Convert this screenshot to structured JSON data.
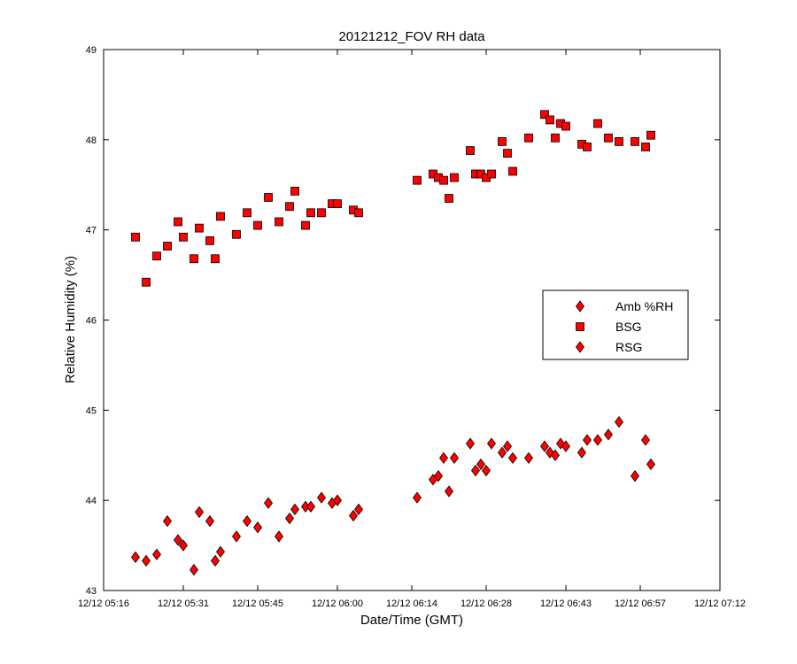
{
  "chart_data": {
    "type": "scatter",
    "title": "20121212_FOV RH data",
    "xlabel": "Date/Time (GMT)",
    "ylabel": "Relative Humidity (%)",
    "x_unit": "GMT time of day, 12/12",
    "xlim": [
      "05:16",
      "07:12"
    ],
    "ylim": [
      43,
      49
    ],
    "x_ticks": [
      "05:16",
      "05:31",
      "05:45",
      "06:00",
      "06:14",
      "06:28",
      "06:43",
      "06:57",
      "07:12"
    ],
    "x_tick_labels": [
      "12/12 05:16",
      "12/12 05:31",
      "12/12 05:45",
      "12/12 06:00",
      "12/12 06:14",
      "12/12 06:28",
      "12/12 06:43",
      "12/12 06:57",
      "12/12 07:12"
    ],
    "y_ticks": [
      43,
      44,
      45,
      46,
      47,
      48,
      49
    ],
    "y_tick_labels": [
      "43",
      "44",
      "45",
      "46",
      "47",
      "48",
      "49"
    ],
    "grid": false,
    "legend_position": "right",
    "series": [
      {
        "name": "Amb %RH",
        "marker": "diamond",
        "color": "#ff0000",
        "points": []
      },
      {
        "name": "BSG",
        "marker": "square",
        "color": "#ff0000",
        "points": [
          [
            "05:22",
            46.92
          ],
          [
            "05:24",
            46.42
          ],
          [
            "05:26",
            46.71
          ],
          [
            "05:28",
            46.82
          ],
          [
            "05:30",
            47.09
          ],
          [
            "05:31",
            46.92
          ],
          [
            "05:33",
            46.68
          ],
          [
            "05:34",
            47.02
          ],
          [
            "05:36",
            46.88
          ],
          [
            "05:37",
            46.68
          ],
          [
            "05:38",
            47.15
          ],
          [
            "05:41",
            46.95
          ],
          [
            "05:43",
            47.19
          ],
          [
            "05:45",
            47.05
          ],
          [
            "05:47",
            47.36
          ],
          [
            "05:49",
            47.09
          ],
          [
            "05:51",
            47.26
          ],
          [
            "05:52",
            47.43
          ],
          [
            "05:54",
            47.05
          ],
          [
            "05:55",
            47.19
          ],
          [
            "05:57",
            47.19
          ],
          [
            "05:59",
            47.29
          ],
          [
            "06:00",
            47.29
          ],
          [
            "06:03",
            47.22
          ],
          [
            "06:04",
            47.19
          ],
          [
            "06:15",
            47.55
          ],
          [
            "06:18",
            47.62
          ],
          [
            "06:19",
            47.58
          ],
          [
            "06:20",
            47.55
          ],
          [
            "06:21",
            47.35
          ],
          [
            "06:22",
            47.58
          ],
          [
            "06:25",
            47.88
          ],
          [
            "06:26",
            47.62
          ],
          [
            "06:27",
            47.62
          ],
          [
            "06:28",
            47.58
          ],
          [
            "06:29",
            47.62
          ],
          [
            "06:31",
            47.98
          ],
          [
            "06:32",
            47.85
          ],
          [
            "06:33",
            47.65
          ],
          [
            "06:36",
            48.02
          ],
          [
            "06:39",
            48.28
          ],
          [
            "06:40",
            48.22
          ],
          [
            "06:41",
            48.02
          ],
          [
            "06:42",
            48.18
          ],
          [
            "06:43",
            48.15
          ],
          [
            "06:46",
            47.95
          ],
          [
            "06:47",
            47.92
          ],
          [
            "06:49",
            48.18
          ],
          [
            "06:51",
            48.02
          ],
          [
            "06:53",
            47.98
          ],
          [
            "06:56",
            47.98
          ],
          [
            "06:58",
            47.92
          ],
          [
            "06:59",
            48.05
          ]
        ]
      },
      {
        "name": "RSG",
        "marker": "diamond",
        "color": "#ff0000",
        "points": [
          [
            "05:22",
            43.37
          ],
          [
            "05:24",
            43.33
          ],
          [
            "05:26",
            43.4
          ],
          [
            "05:28",
            43.77
          ],
          [
            "05:30",
            43.56
          ],
          [
            "05:31",
            43.5
          ],
          [
            "05:33",
            43.23
          ],
          [
            "05:34",
            43.87
          ],
          [
            "05:36",
            43.77
          ],
          [
            "05:37",
            43.33
          ],
          [
            "05:38",
            43.43
          ],
          [
            "05:41",
            43.6
          ],
          [
            "05:43",
            43.77
          ],
          [
            "05:45",
            43.7
          ],
          [
            "05:47",
            43.97
          ],
          [
            "05:49",
            43.6
          ],
          [
            "05:51",
            43.8
          ],
          [
            "05:52",
            43.9
          ],
          [
            "05:54",
            43.93
          ],
          [
            "05:55",
            43.93
          ],
          [
            "05:57",
            44.03
          ],
          [
            "05:59",
            43.97
          ],
          [
            "06:00",
            44.0
          ],
          [
            "06:03",
            43.83
          ],
          [
            "06:04",
            43.9
          ],
          [
            "06:15",
            44.03
          ],
          [
            "06:18",
            44.23
          ],
          [
            "06:19",
            44.27
          ],
          [
            "06:20",
            44.47
          ],
          [
            "06:21",
            44.1
          ],
          [
            "06:22",
            44.47
          ],
          [
            "06:25",
            44.63
          ],
          [
            "06:26",
            44.33
          ],
          [
            "06:27",
            44.4
          ],
          [
            "06:28",
            44.33
          ],
          [
            "06:29",
            44.63
          ],
          [
            "06:31",
            44.53
          ],
          [
            "06:32",
            44.6
          ],
          [
            "06:33",
            44.47
          ],
          [
            "06:36",
            44.47
          ],
          [
            "06:39",
            44.6
          ],
          [
            "06:40",
            44.53
          ],
          [
            "06:41",
            44.5
          ],
          [
            "06:42",
            44.63
          ],
          [
            "06:43",
            44.6
          ],
          [
            "06:46",
            44.53
          ],
          [
            "06:47",
            44.67
          ],
          [
            "06:49",
            44.67
          ],
          [
            "06:51",
            44.73
          ],
          [
            "06:53",
            44.87
          ],
          [
            "06:56",
            44.27
          ],
          [
            "06:58",
            44.67
          ],
          [
            "06:59",
            44.4
          ]
        ]
      }
    ]
  }
}
